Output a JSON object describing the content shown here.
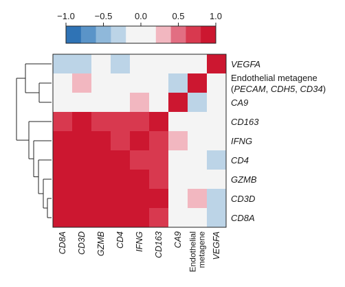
{
  "chart_data": {
    "type": "heatmap",
    "rows": [
      "VEGFA",
      "Endothelial metagene (PECAM, CDH5, CD34)",
      "CA9",
      "CD163",
      "IFNG",
      "CD4",
      "GZMB",
      "CD3D",
      "CD8A"
    ],
    "row_labels": [
      {
        "lines": [
          [
            {
              "text": "VEGFA",
              "italic": true
            }
          ]
        ]
      },
      {
        "lines": [
          [
            {
              "text": "Endothelial metagene",
              "italic": false
            }
          ],
          [
            {
              "text": "(",
              "italic": false
            },
            {
              "text": "PECAM",
              "italic": true
            },
            {
              "text": ", ",
              "italic": false
            },
            {
              "text": "CDH5",
              "italic": true
            },
            {
              "text": ", ",
              "italic": false
            },
            {
              "text": "CD34",
              "italic": true
            },
            {
              "text": ")",
              "italic": false
            }
          ]
        ]
      },
      {
        "lines": [
          [
            {
              "text": "CA9",
              "italic": true
            }
          ]
        ]
      },
      {
        "lines": [
          [
            {
              "text": "CD163",
              "italic": true
            }
          ]
        ]
      },
      {
        "lines": [
          [
            {
              "text": "IFNG",
              "italic": true
            }
          ]
        ]
      },
      {
        "lines": [
          [
            {
              "text": "CD4",
              "italic": true
            }
          ]
        ]
      },
      {
        "lines": [
          [
            {
              "text": "GZMB",
              "italic": true
            }
          ]
        ]
      },
      {
        "lines": [
          [
            {
              "text": "CD3D",
              "italic": true
            }
          ]
        ]
      },
      {
        "lines": [
          [
            {
              "text": "CD8A",
              "italic": true
            }
          ]
        ]
      }
    ],
    "columns": [
      "CD8A",
      "CD3D",
      "GZMB",
      "CD4",
      "IFNG",
      "CD163",
      "CA9",
      "Endothelial metagene",
      "VEGFA"
    ],
    "column_labels": [
      {
        "lines": [
          "CD8A"
        ],
        "italic": true
      },
      {
        "lines": [
          "CD3D"
        ],
        "italic": true
      },
      {
        "lines": [
          "GZMB"
        ],
        "italic": true
      },
      {
        "lines": [
          "CD4"
        ],
        "italic": true
      },
      {
        "lines": [
          "IFNG"
        ],
        "italic": true
      },
      {
        "lines": [
          "CD163"
        ],
        "italic": true
      },
      {
        "lines": [
          "CA9"
        ],
        "italic": true
      },
      {
        "lines": [
          "Endothelial",
          "metagene"
        ],
        "italic": false
      },
      {
        "lines": [
          "VEGFA"
        ],
        "italic": true
      }
    ],
    "values": [
      [
        -0.3,
        -0.3,
        0.0,
        -0.3,
        0.0,
        0.0,
        0.0,
        0.0,
        1.0
      ],
      [
        0.0,
        0.3,
        0.0,
        0.0,
        0.0,
        0.0,
        -0.3,
        1.0,
        0.0
      ],
      [
        0.0,
        0.0,
        0.0,
        0.0,
        0.3,
        0.0,
        1.0,
        -0.3,
        0.0
      ],
      [
        0.6,
        0.8,
        0.6,
        0.6,
        0.6,
        1.0,
        0.0,
        0.0,
        0.0
      ],
      [
        0.8,
        0.8,
        0.8,
        0.6,
        1.0,
        0.6,
        0.3,
        0.0,
        0.0
      ],
      [
        0.8,
        0.8,
        0.8,
        1.0,
        0.6,
        0.6,
        0.0,
        0.0,
        -0.3
      ],
      [
        0.8,
        1.0,
        1.0,
        0.8,
        0.8,
        0.6,
        0.0,
        0.0,
        0.0
      ],
      [
        1.0,
        1.0,
        1.0,
        0.8,
        0.8,
        0.8,
        0.0,
        0.3,
        -0.3
      ],
      [
        1.0,
        1.0,
        0.8,
        0.8,
        0.8,
        0.6,
        0.0,
        0.0,
        -0.3
      ]
    ],
    "colorbar": {
      "ticks": [
        -1.0,
        -0.5,
        0.0,
        0.5,
        1.0
      ],
      "tick_labels": [
        "−1.0",
        "−0.5",
        "0.0",
        "0.5",
        "1.0"
      ],
      "range": [
        -1.0,
        1.0
      ],
      "colors": [
        "#2f73b5",
        "#5a94c8",
        "#8fb8da",
        "#bcd4e7",
        "#f4f4f4",
        "#f4f4f4",
        "#f2b7c0",
        "#e26e82",
        "#d8394f",
        "#cc1730"
      ]
    },
    "dendrogram": "left"
  }
}
